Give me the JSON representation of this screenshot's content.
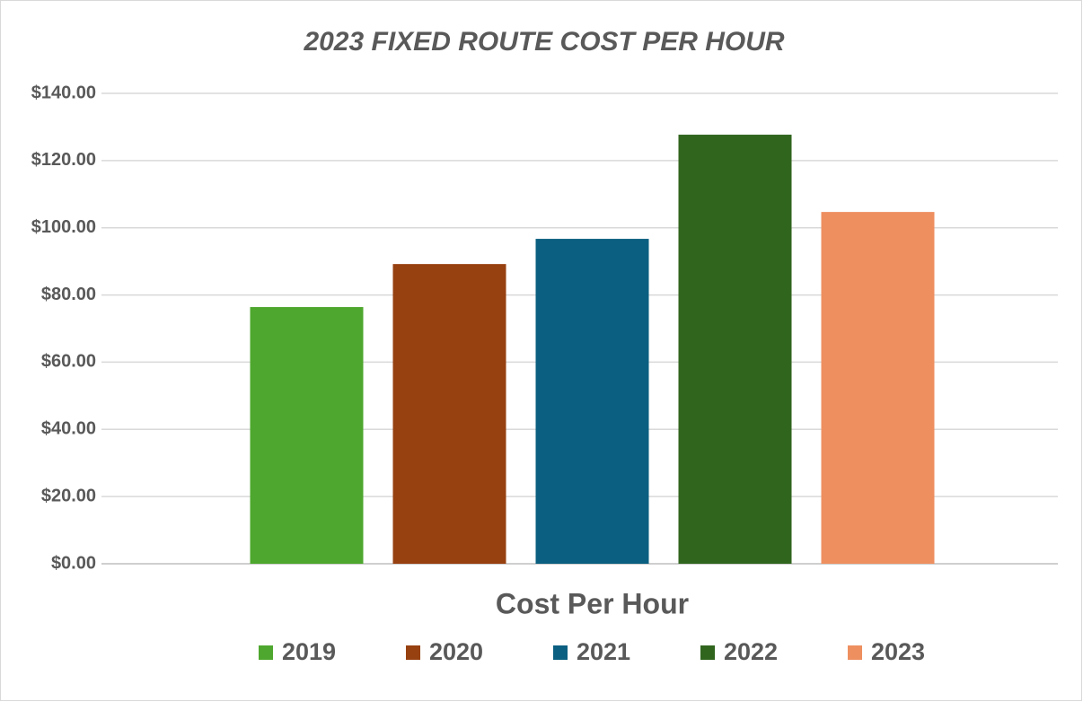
{
  "chart_data": {
    "type": "bar",
    "title": "2023 FIXED ROUTE COST PER HOUR",
    "categories": [
      "Cost Per Hour"
    ],
    "series": [
      {
        "name": "2019",
        "color": "#4ea72e",
        "values": [
          76.4
        ]
      },
      {
        "name": "2020",
        "color": "#974010",
        "values": [
          89.2
        ]
      },
      {
        "name": "2021",
        "color": "#0b5f80",
        "values": [
          96.7
        ]
      },
      {
        "name": "2022",
        "color": "#30651e",
        "values": [
          127.7
        ]
      },
      {
        "name": "2023",
        "color": "#ee8f60",
        "values": [
          104.7
        ]
      }
    ],
    "ylim": [
      0,
      140
    ],
    "yticks": [
      {
        "value": 0,
        "label": "$0.00"
      },
      {
        "value": 20,
        "label": "$20.00"
      },
      {
        "value": 40,
        "label": "$40.00"
      },
      {
        "value": 60,
        "label": "$60.00"
      },
      {
        "value": 80,
        "label": "$80.00"
      },
      {
        "value": 100,
        "label": "$100.00"
      },
      {
        "value": 120,
        "label": "$120.00"
      },
      {
        "value": 140,
        "label": "$140.00"
      }
    ],
    "grid": true,
    "legend": "bottom"
  }
}
